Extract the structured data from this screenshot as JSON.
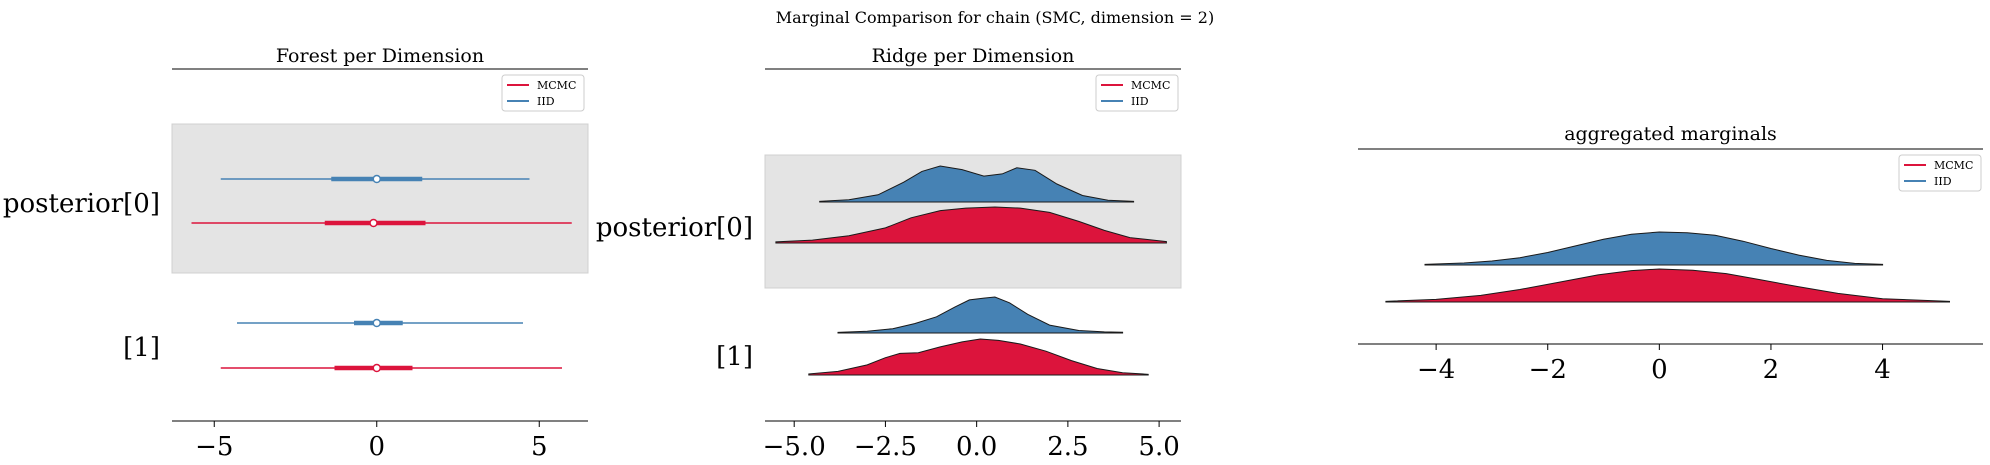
{
  "figure": {
    "suptitle": "Marginal Comparison for chain (SMC, dimension = 2)"
  },
  "colors": {
    "mcmc": "#dc143c",
    "iid": "#4682b4",
    "band": "#e4e4e4"
  },
  "chart_data": [
    {
      "type": "forest",
      "title": "Forest per Dimension",
      "xlim": [
        -6.3,
        6.5
      ],
      "xticks": [
        -5,
        0,
        5
      ],
      "xtick_labels": [
        "−5",
        "0",
        "5"
      ],
      "legend": {
        "placement": "top-right",
        "entries": [
          "MCMC",
          "IID"
        ]
      },
      "rows": [
        {
          "label": "posterior[0]",
          "shaded": true,
          "series": [
            {
              "name": "IID",
              "whisker": [
                -4.8,
                4.7
              ],
              "box": [
                -1.4,
                1.4
              ],
              "median": 0.0
            },
            {
              "name": "MCMC",
              "whisker": [
                -5.7,
                6.0
              ],
              "box": [
                -1.6,
                1.5
              ],
              "median": -0.1
            }
          ]
        },
        {
          "label": "[1]",
          "shaded": false,
          "series": [
            {
              "name": "IID",
              "whisker": [
                -4.3,
                4.5
              ],
              "box": [
                -0.7,
                0.8
              ],
              "median": 0.0
            },
            {
              "name": "MCMC",
              "whisker": [
                -4.8,
                5.7
              ],
              "box": [
                -1.3,
                1.1
              ],
              "median": 0.0
            }
          ]
        }
      ]
    },
    {
      "type": "ridge",
      "title": "Ridge per Dimension",
      "xlim": [
        -5.8,
        5.6
      ],
      "xticks": [
        -5.0,
        -2.5,
        0.0,
        2.5,
        5.0
      ],
      "xtick_labels": [
        "−5.0",
        "−2.5",
        "0.0",
        "2.5",
        "5.0"
      ],
      "legend": {
        "placement": "top-right",
        "entries": [
          "MCMC",
          "IID"
        ]
      },
      "rows": [
        {
          "label": "posterior[0]",
          "shaded": true,
          "series": [
            {
              "name": "IID",
              "x": [
                -4.3,
                -3.5,
                -2.7,
                -2.0,
                -1.5,
                -1.0,
                -0.4,
                0.2,
                0.7,
                1.1,
                1.6,
                2.2,
                2.9,
                3.6,
                4.3
              ],
              "density": [
                0.02,
                0.06,
                0.2,
                0.55,
                0.85,
                1.0,
                0.9,
                0.72,
                0.78,
                0.95,
                0.88,
                0.5,
                0.18,
                0.05,
                0.02
              ]
            },
            {
              "name": "MCMC",
              "x": [
                -5.5,
                -4.5,
                -3.5,
                -2.5,
                -1.8,
                -1.0,
                -0.3,
                0.5,
                1.2,
                2.0,
                2.8,
                3.5,
                4.2,
                5.2
              ],
              "density": [
                0.03,
                0.08,
                0.2,
                0.42,
                0.7,
                0.9,
                0.97,
                1.0,
                0.97,
                0.85,
                0.6,
                0.35,
                0.15,
                0.04
              ]
            }
          ]
        },
        {
          "label": "[1]",
          "shaded": false,
          "series": [
            {
              "name": "IID",
              "x": [
                -3.8,
                -3.0,
                -2.3,
                -1.7,
                -1.1,
                -0.6,
                -0.2,
                0.2,
                0.5,
                0.9,
                1.4,
                2.0,
                2.8,
                3.5,
                4.0
              ],
              "density": [
                0.02,
                0.05,
                0.12,
                0.26,
                0.45,
                0.72,
                0.92,
                0.97,
                1.0,
                0.84,
                0.52,
                0.22,
                0.07,
                0.03,
                0.02
              ]
            },
            {
              "name": "MCMC",
              "x": [
                -4.6,
                -3.8,
                -3.0,
                -2.5,
                -2.1,
                -1.6,
                -1.0,
                -0.4,
                0.1,
                0.6,
                1.2,
                1.9,
                2.6,
                3.3,
                4.0,
                4.7
              ],
              "density": [
                0.03,
                0.1,
                0.28,
                0.48,
                0.6,
                0.62,
                0.78,
                0.92,
                1.0,
                0.96,
                0.86,
                0.66,
                0.4,
                0.18,
                0.06,
                0.02
              ]
            }
          ]
        }
      ]
    },
    {
      "type": "area",
      "title": "aggregated marginals",
      "xlim": [
        -5.4,
        5.8
      ],
      "xticks": [
        -4,
        -2,
        0,
        2,
        4
      ],
      "xtick_labels": [
        "−4",
        "−2",
        "0",
        "2",
        "4"
      ],
      "legend": {
        "placement": "top-right",
        "entries": [
          "MCMC",
          "IID"
        ]
      },
      "series": [
        {
          "name": "IID",
          "x": [
            -4.2,
            -3.5,
            -3.0,
            -2.5,
            -2.0,
            -1.5,
            -1.0,
            -0.5,
            0.0,
            0.5,
            1.0,
            1.5,
            2.0,
            2.5,
            3.0,
            3.5,
            4.0
          ],
          "density": [
            0.02,
            0.06,
            0.12,
            0.22,
            0.38,
            0.58,
            0.78,
            0.93,
            1.0,
            0.98,
            0.9,
            0.72,
            0.5,
            0.3,
            0.14,
            0.05,
            0.02
          ]
        },
        {
          "name": "MCMC",
          "x": [
            -4.9,
            -4.0,
            -3.2,
            -2.5,
            -1.8,
            -1.1,
            -0.5,
            0.0,
            0.6,
            1.2,
            1.8,
            2.5,
            3.2,
            4.0,
            5.2
          ],
          "density": [
            0.02,
            0.08,
            0.2,
            0.38,
            0.6,
            0.82,
            0.95,
            1.0,
            0.96,
            0.86,
            0.68,
            0.46,
            0.26,
            0.1,
            0.02
          ]
        }
      ]
    }
  ]
}
